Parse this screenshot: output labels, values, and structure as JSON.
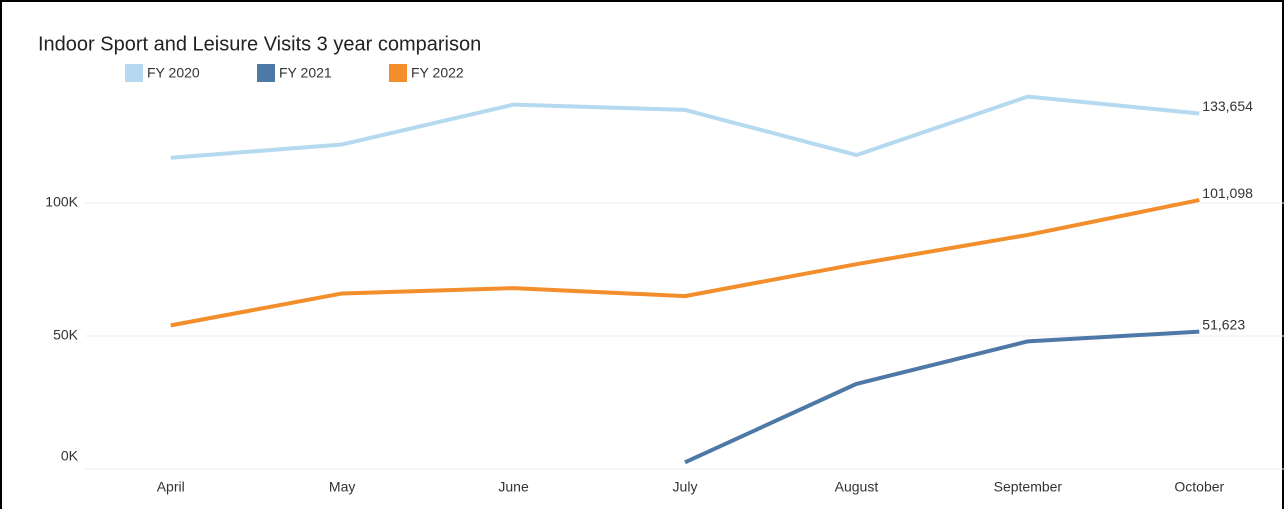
{
  "chart_data": {
    "type": "line",
    "title": "Indoor Sport and Leisure Visits 3 year comparison",
    "categories": [
      "April",
      "May",
      "June",
      "July",
      "August",
      "September",
      "October"
    ],
    "series": [
      {
        "name": "FY 2020",
        "color": "#b5d9ef",
        "values": [
          117000,
          122000,
          137000,
          135000,
          118000,
          140000,
          133654
        ],
        "value_labels": [
          null,
          null,
          null,
          null,
          null,
          null,
          "133,654"
        ]
      },
      {
        "name": "FY 2021",
        "color": "#4e79a7",
        "values": [
          null,
          null,
          null,
          2500,
          32000,
          48000,
          51623
        ],
        "value_labels": [
          null,
          null,
          null,
          null,
          null,
          null,
          "51,623"
        ]
      },
      {
        "name": "FY 2022",
        "color": "#f28e2b",
        "values": [
          54000,
          66000,
          68000,
          65000,
          77000,
          88000,
          101098
        ],
        "value_labels": [
          null,
          null,
          null,
          null,
          null,
          null,
          "101,098"
        ]
      }
    ],
    "ylim": [
      0,
      150000
    ],
    "yticks": [
      {
        "value": 0,
        "label": "0K"
      },
      {
        "value": 50000,
        "label": "50K"
      },
      {
        "value": 100000,
        "label": "100K"
      }
    ],
    "grid": true
  }
}
